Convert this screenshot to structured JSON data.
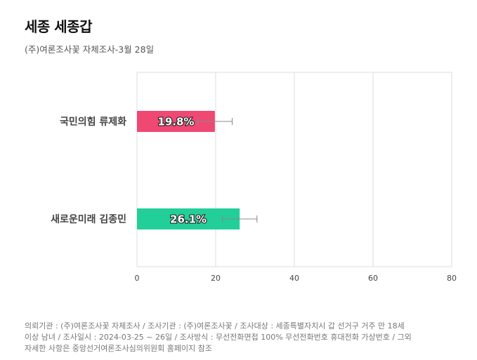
{
  "header": {
    "title": "세종 세종갑",
    "subtitle": "(주)여론조사꽃 자체조사-3월 28일"
  },
  "chart_data": {
    "type": "bar",
    "orientation": "horizontal",
    "categories": [
      "국민의힘 류제화",
      "새로운미래 김종민"
    ],
    "values": [
      19.8,
      26.1
    ],
    "value_labels": [
      "19.8%",
      "26.1%"
    ],
    "error_margin": 4.4,
    "colors": [
      "#ef4873",
      "#22cf98"
    ],
    "xlim": [
      0,
      80
    ],
    "xticks": [
      "0",
      "20",
      "40",
      "60",
      "80"
    ],
    "grid": true
  },
  "footnote": {
    "lines": [
      "의뢰기관 : (주)여론조사꽃 자체조사 / 조사기관 : (주)여론조사꽃 / 조사대상 : 세종특별자치시 갑 선거구 거주 만 18세",
      "이상 남녀 / 조사일시 : 2024-03-25 ~ 26일 / 조사방식 : 무선전화면접 100% 무선전화번호 휴대전화 가상번호 / 그외",
      "자세한 사항은 중앙선거여론조사심의위원회 홈페이지 참조"
    ]
  }
}
